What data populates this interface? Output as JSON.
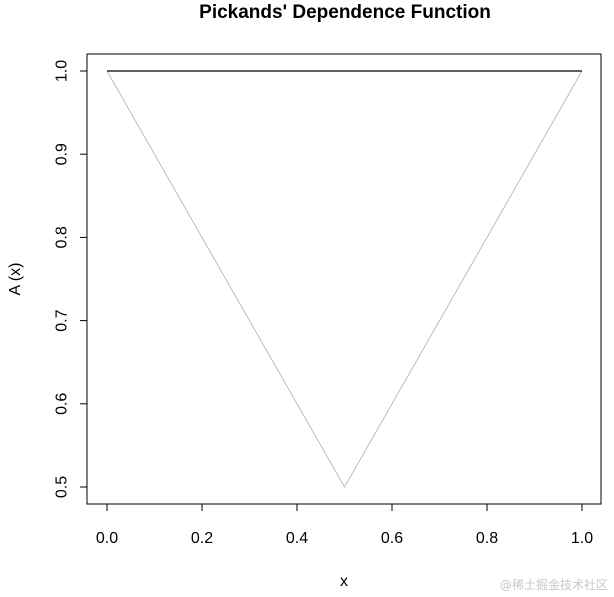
{
  "chart_data": {
    "type": "line",
    "title": "Pickands' Dependence Function",
    "xlabel": "x",
    "ylabel": "A (x)",
    "xlim": [
      0.0,
      1.0
    ],
    "ylim": [
      0.5,
      1.0
    ],
    "x_ticks": [
      0.0,
      0.2,
      0.4,
      0.6,
      0.8,
      1.0
    ],
    "x_tick_labels": [
      "0.0",
      "0.2",
      "0.4",
      "0.6",
      "0.8",
      "1.0"
    ],
    "y_ticks": [
      0.5,
      0.6,
      0.7,
      0.8,
      0.9,
      1.0
    ],
    "y_tick_labels": [
      "0.5",
      "0.6",
      "0.7",
      "0.8",
      "0.9",
      "1.0"
    ],
    "grid": false,
    "legend": "none",
    "series": [
      {
        "color": "#000000",
        "x": [
          0.0,
          1.0
        ],
        "y": [
          1.0,
          1.0
        ]
      },
      {
        "color": "#bebebe",
        "x": [
          0.0,
          0.5,
          1.0
        ],
        "y": [
          1.0,
          0.5,
          1.0
        ]
      }
    ]
  },
  "watermark": "@稀土掘金技术社区"
}
